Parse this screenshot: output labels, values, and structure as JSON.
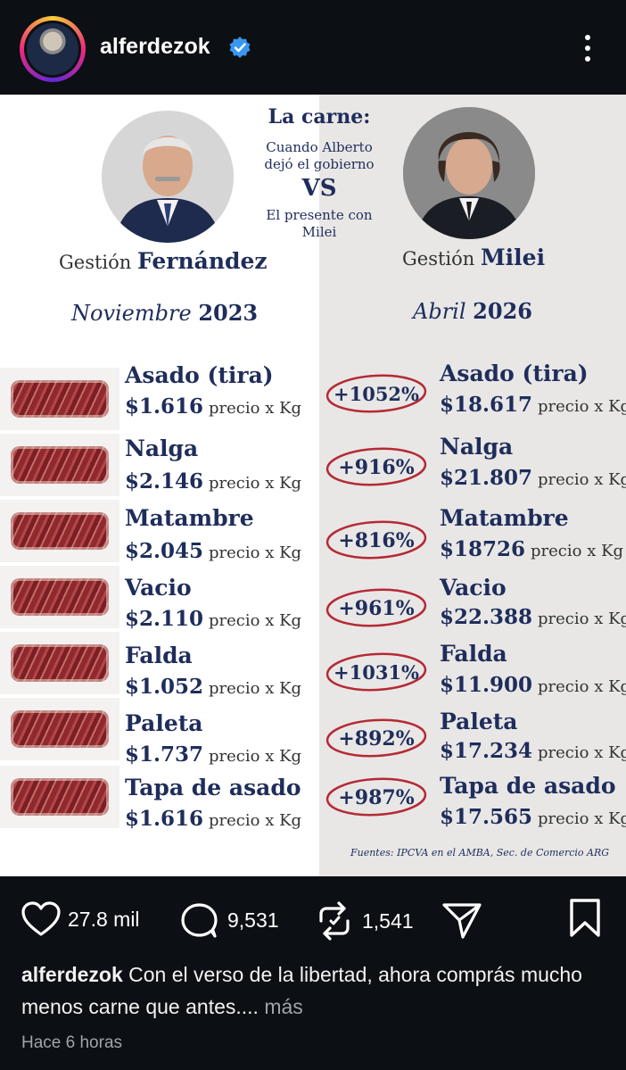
{
  "header": {
    "username": "alferdezok",
    "icons": {
      "avatar": "avatar",
      "verified": "verified-badge-icon",
      "menu": "more-options-icon"
    },
    "colors": {
      "background": "#0c0f13",
      "verified": "#3897f0"
    }
  },
  "infographic": {
    "center": {
      "title": "La carne:",
      "subtitle_1": "Cuando Alberto dejó el gobierno",
      "vs": "VS",
      "subtitle_2": "El presente con Milei"
    },
    "left": {
      "gestion_label": "Gestión",
      "gestion_name": "Fernández",
      "period_month": "Noviembre",
      "period_year": "2023"
    },
    "right": {
      "gestion_label": "Gestión",
      "gestion_name": "Milei",
      "period_month": "Abril",
      "period_year": "2026"
    },
    "unit_label": "precio x Kg",
    "cuts": [
      {
        "name": "Asado (tira)",
        "price_2023": "$1.616",
        "increase": "+1052%",
        "price_2026": "$18.617"
      },
      {
        "name": "Nalga",
        "price_2023": "$2.146",
        "increase": "+916%",
        "price_2026": "$21.807"
      },
      {
        "name": "Matambre",
        "price_2023": "$2.045",
        "increase": "+816%",
        "price_2026": "$18726"
      },
      {
        "name": "Vacio",
        "price_2023": "$2.110",
        "increase": "+961%",
        "price_2026": "$22.388"
      },
      {
        "name": "Falda",
        "price_2023": "$1.052",
        "increase": "+1031%",
        "price_2026": "$11.900"
      },
      {
        "name": "Paleta",
        "price_2023": "$1.737",
        "increase": "+892%",
        "price_2026": "$17.234"
      },
      {
        "name": "Tapa de asado",
        "price_2023": "$1.616",
        "increase": "+987%",
        "price_2026": "$17.565"
      }
    ],
    "sources": "Fuentes: IPCVA en el AMBA, Sec. de Comercio ARG",
    "colors": {
      "navy": "#1f2d5b",
      "circle_red": "#b52a34",
      "right_bg": "#e8e7e6"
    }
  },
  "actions": {
    "likes": "27.8 mil",
    "comments": "9,531",
    "reposts": "1,541",
    "icons": {
      "like": "heart-icon",
      "comment": "comment-icon",
      "repost": "repost-icon",
      "share": "send-icon",
      "save": "bookmark-icon"
    }
  },
  "caption": {
    "username": "alferdezok",
    "text": "Con el verso de la libertad, ahora comprás mucho menos carne que antes....",
    "more": "más"
  },
  "timestamp": "Hace 6 horas"
}
